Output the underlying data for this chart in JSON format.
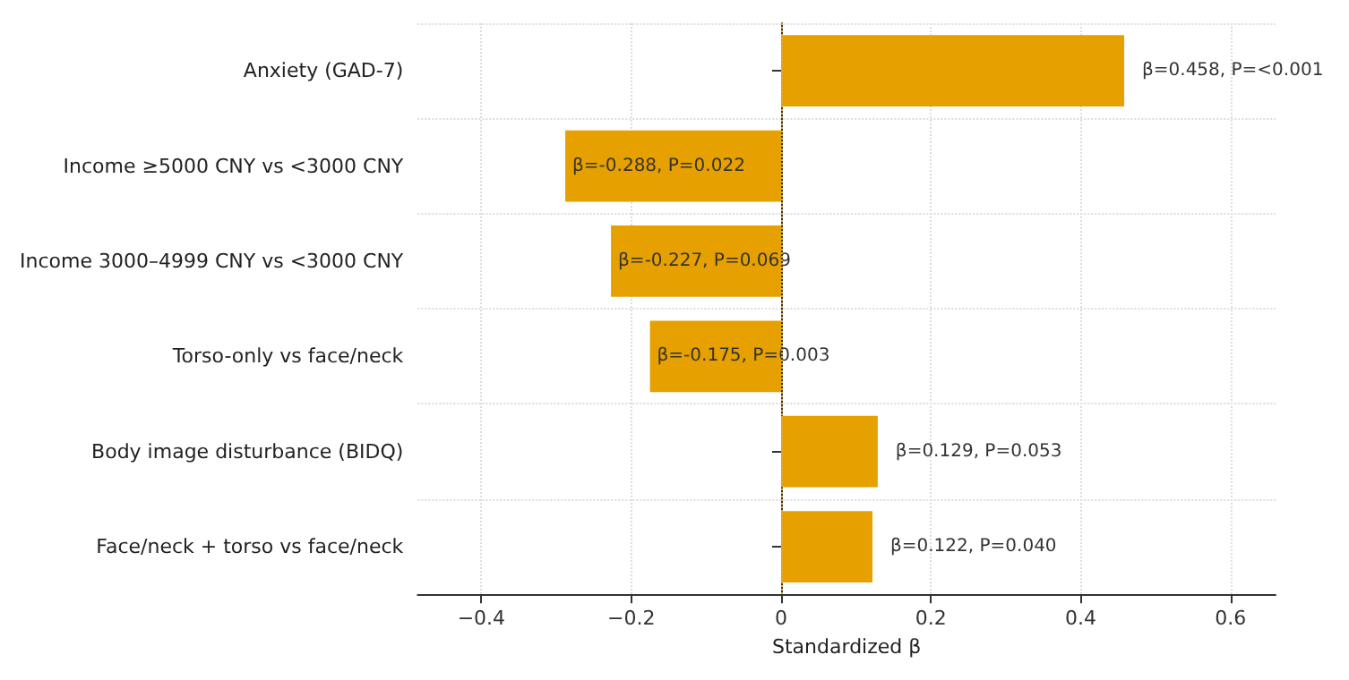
{
  "chart_data": {
    "type": "bar",
    "orientation": "horizontal",
    "xlabel": "Standardized β",
    "categories": [
      "Anxiety (GAD-7)",
      "Income ≥5000 CNY vs <3000 CNY",
      "Income 3000–4999 CNY vs <3000 CNY",
      "Torso-only vs face/neck",
      "Body image disturbance (BIDQ)",
      "Face/neck + torso vs face/neck"
    ],
    "values": [
      0.458,
      -0.288,
      -0.227,
      -0.175,
      0.129,
      0.122
    ],
    "value_labels": [
      "β=0.458, P=<0.001",
      "β=-0.288, P=0.022",
      "β=-0.227, P=0.069",
      "β=-0.175, P=0.003",
      "β=0.129, P=0.053",
      "β=0.122, P=0.040"
    ],
    "color": "#e6a000",
    "xlim": [
      -0.485,
      0.66
    ],
    "xticks": [
      {
        "value": -0.4,
        "label": "−0.4"
      },
      {
        "value": -0.2,
        "label": "−0.2"
      },
      0.0,
      0.2,
      0.4,
      0.6
    ],
    "grid": true,
    "ref_lines": [
      {
        "axis": "x",
        "value": 0,
        "color": "#d9a84a",
        "line_style": "dotted"
      }
    ]
  }
}
